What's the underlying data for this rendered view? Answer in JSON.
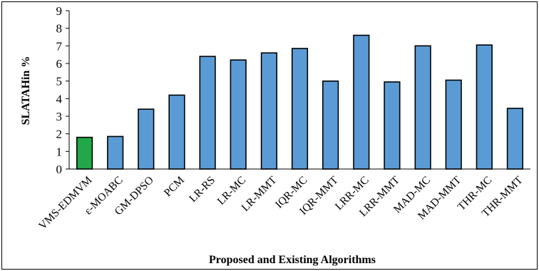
{
  "chart_data": {
    "type": "bar",
    "title": "",
    "xlabel": "Proposed and Existing Algorithms",
    "ylabel": "SLATAHin %",
    "ylim": [
      0,
      9
    ],
    "yticks": [
      0,
      1,
      2,
      3,
      4,
      5,
      6,
      7,
      8,
      9
    ],
    "grid": false,
    "legend": "none",
    "categories": [
      "VMS-EDMVM",
      "ε-MOABC",
      "GM-DPSO",
      "PCM",
      "LR-RS",
      "LR-MC",
      "LR-MMT",
      "IQR-MC",
      "IQR-MMT",
      "LRR-MC",
      "LRR-MMT",
      "MAD-MC",
      "MAD-MMT",
      "THR-MC",
      "THR-MMT"
    ],
    "values": [
      1.8,
      1.85,
      3.4,
      4.2,
      6.4,
      6.2,
      6.6,
      6.85,
      5.0,
      7.6,
      4.95,
      7.0,
      5.05,
      7.05,
      3.45
    ],
    "colors": {
      "highlight": "#22A84A",
      "bar": "#5B9BD5",
      "bar_edge": "#000000"
    }
  }
}
